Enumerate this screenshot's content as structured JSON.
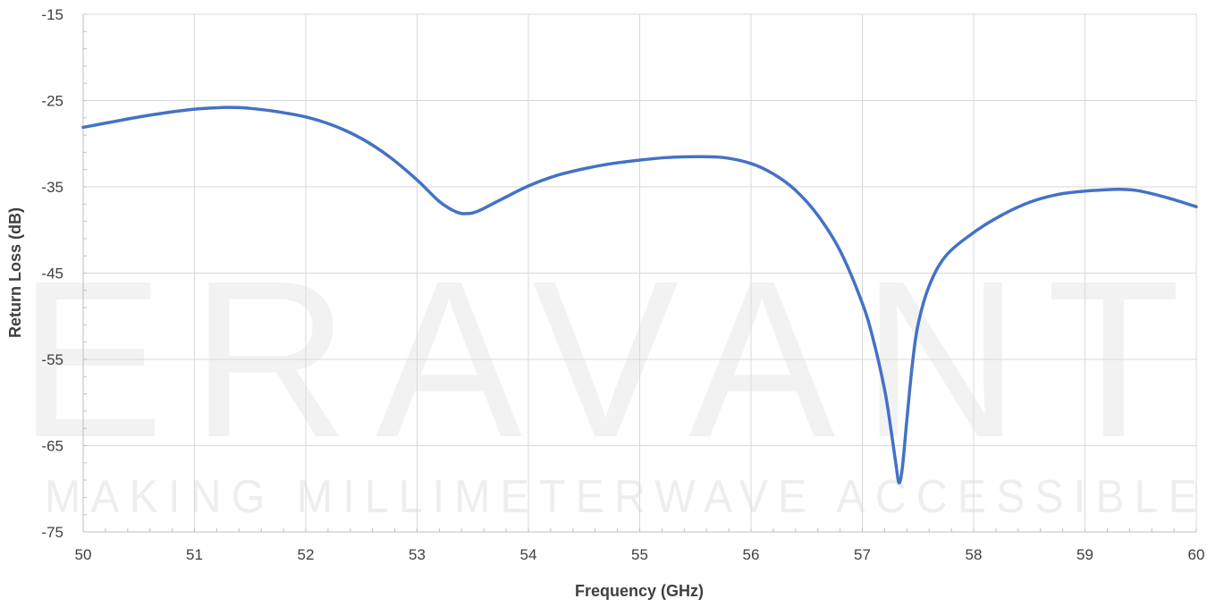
{
  "watermark": {
    "brand": "ERAVANT",
    "tagline": "MAKING MILLIMETERWAVE ACCESSIBLE"
  },
  "chart_data": {
    "type": "line",
    "xlabel": "Frequency (GHz)",
    "ylabel": "Return Loss (dB)",
    "xlim": [
      50,
      60
    ],
    "ylim": [
      -75,
      -15
    ],
    "xticks": [
      50,
      51,
      52,
      53,
      54,
      55,
      56,
      57,
      58,
      59,
      60
    ],
    "yticks": [
      -15,
      -25,
      -35,
      -45,
      -55,
      -65,
      -75
    ],
    "grid": true,
    "legend": "none",
    "series": [
      {
        "color": "#4472c4",
        "x": [
          50.0,
          50.25,
          50.5,
          50.75,
          51.0,
          51.25,
          51.35,
          51.5,
          51.75,
          52.0,
          52.25,
          52.5,
          52.75,
          53.0,
          53.2,
          53.35,
          53.45,
          53.55,
          53.75,
          54.0,
          54.25,
          54.5,
          54.75,
          55.0,
          55.25,
          55.5,
          55.75,
          56.0,
          56.2,
          56.4,
          56.6,
          56.8,
          57.0,
          57.1,
          57.2,
          57.25,
          57.3,
          57.33,
          57.36,
          57.4,
          57.45,
          57.5,
          57.6,
          57.75,
          58.0,
          58.25,
          58.5,
          58.75,
          59.0,
          59.25,
          59.35,
          59.5,
          59.75,
          60.0
        ],
        "y": [
          -28.1,
          -27.5,
          -26.9,
          -26.4,
          -26.0,
          -25.8,
          -25.8,
          -25.9,
          -26.3,
          -26.9,
          -27.9,
          -29.4,
          -31.5,
          -34.2,
          -36.7,
          -37.9,
          -38.1,
          -37.8,
          -36.5,
          -34.9,
          -33.7,
          -32.9,
          -32.3,
          -31.9,
          -31.6,
          -31.5,
          -31.6,
          -32.3,
          -33.5,
          -35.4,
          -38.3,
          -42.4,
          -48.5,
          -52.8,
          -58.5,
          -62.5,
          -67.0,
          -69.3,
          -67.5,
          -62.0,
          -55.5,
          -51.0,
          -46.5,
          -43.0,
          -40.3,
          -38.3,
          -36.8,
          -35.9,
          -35.5,
          -35.3,
          -35.3,
          -35.5,
          -36.3,
          -37.3
        ]
      }
    ]
  }
}
